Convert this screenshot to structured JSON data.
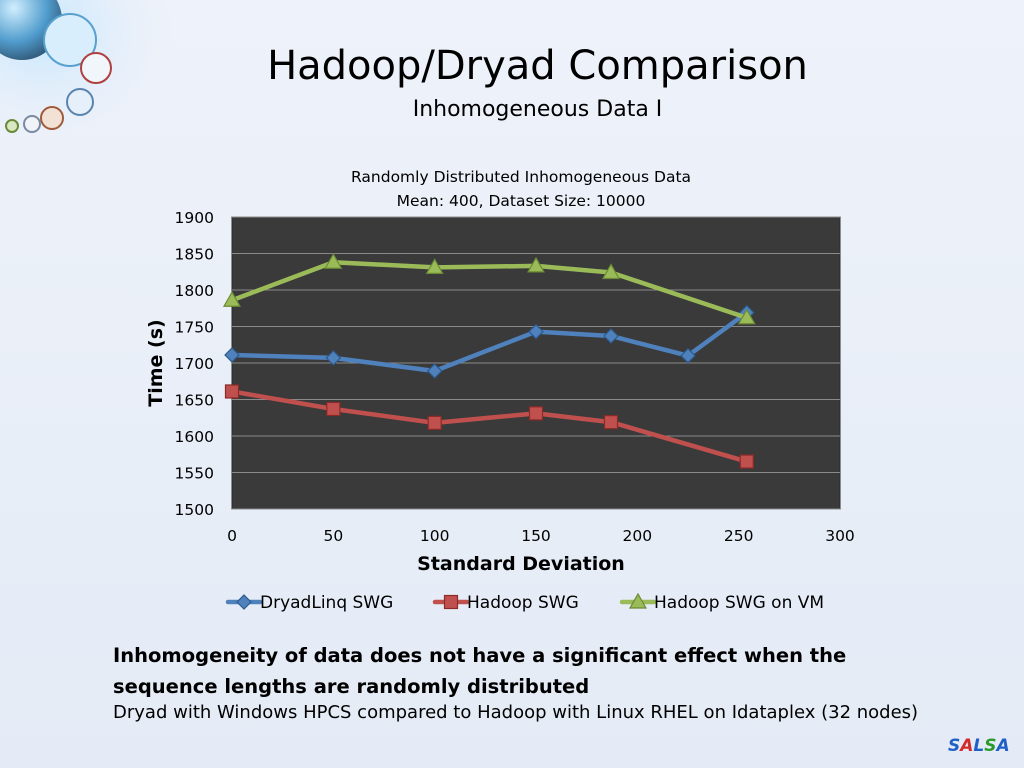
{
  "slide": {
    "title": "Hadoop/Dryad Comparison",
    "subtitle": "Inhomogeneous Data I",
    "bold_text": "Inhomogeneity of data does not have a significant effect when the sequence lengths are randomly distributed",
    "normal_text": "Dryad with Windows HPCS compared to Hadoop with Linux RHEL on Idataplex (32 nodes)",
    "logo_letters": [
      {
        "ch": "S",
        "color": "#1f5fc8"
      },
      {
        "ch": "A",
        "color": "#d42a2a"
      },
      {
        "ch": "L",
        "color": "#1f5fc8"
      },
      {
        "ch": "S",
        "color": "#2a9a2a"
      },
      {
        "ch": "A",
        "color": "#1f5fc8"
      }
    ]
  },
  "chart_data": {
    "type": "line",
    "title_lines": [
      "Randomly Distributed Inhomogeneous Data",
      "Mean: 400,  Dataset Size: 10000"
    ],
    "xlabel": "Standard Deviation",
    "ylabel": "Time (s)",
    "xlim": [
      0,
      300
    ],
    "ylim": [
      1500,
      1900
    ],
    "xticks": [
      0,
      50,
      100,
      150,
      200,
      250,
      300
    ],
    "yticks": [
      1500,
      1550,
      1600,
      1650,
      1700,
      1750,
      1800,
      1850,
      1900
    ],
    "grid": true,
    "plot_background": "#3a3a3a",
    "legend_position": "bottom",
    "series": [
      {
        "name": "DryadLinq SWG",
        "color": "#4f81bd",
        "marker": "diamond",
        "points": [
          [
            0,
            1711
          ],
          [
            50,
            1707
          ],
          [
            100,
            1689
          ],
          [
            150,
            1743
          ],
          [
            187,
            1737
          ],
          [
            225,
            1710
          ],
          [
            254,
            1769
          ]
        ]
      },
      {
        "name": "Hadoop SWG",
        "color": "#c0504d",
        "marker": "square",
        "points": [
          [
            0,
            1661
          ],
          [
            50,
            1637
          ],
          [
            100,
            1618
          ],
          [
            150,
            1631
          ],
          [
            187,
            1619
          ],
          [
            254,
            1565
          ]
        ]
      },
      {
        "name": "Hadoop SWG on VM",
        "color": "#9bbb59",
        "marker": "triangle",
        "points": [
          [
            0,
            1786
          ],
          [
            50,
            1838
          ],
          [
            100,
            1831
          ],
          [
            150,
            1833
          ],
          [
            187,
            1824
          ],
          [
            254,
            1762
          ]
        ]
      }
    ]
  }
}
